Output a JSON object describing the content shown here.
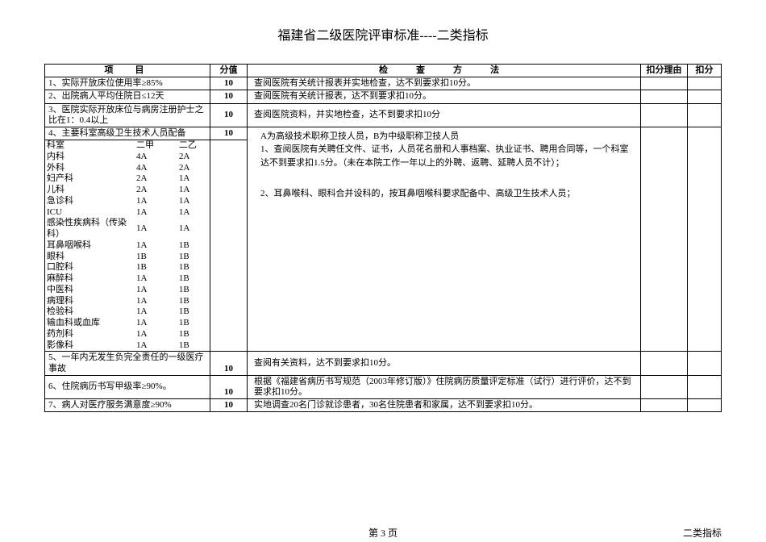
{
  "title": "福建省二级医院评审标准----二类指标",
  "headers": {
    "item": "项　目",
    "score": "分值",
    "method": "检　查　方　法",
    "reason": "扣分理由",
    "deduct": "扣分"
  },
  "rows": [
    {
      "item": "1、实际开放床位使用率≥85%",
      "score": "10",
      "method": "查阅医院有关统计报表并实地检查，达不到要求扣10分。"
    },
    {
      "item": "2、出院病人平均住院日≤12天",
      "score": "10",
      "method": "查阅医院有关统计报表，达不到要求扣10分。"
    },
    {
      "item": "3、医院实际开放床位与病房注册护士之比在1：0.4以上",
      "score": "10",
      "method": "查阅医院资料，并实地检查，达不到要求扣10分"
    }
  ],
  "deptHeader": {
    "item": "4、主要科室高级卫生技术人员配备",
    "score": "10"
  },
  "deptColumns": {
    "c1": "科室",
    "c2": "二甲",
    "c3": "二乙"
  },
  "depts": [
    {
      "name": "内科",
      "a": "4A",
      "b": "2A"
    },
    {
      "name": "外科",
      "a": "4A",
      "b": "2A"
    },
    {
      "name": "妇产科",
      "a": "2A",
      "b": "1A"
    },
    {
      "name": "儿科",
      "a": "2A",
      "b": "1A"
    },
    {
      "name": "急诊科",
      "a": "1A",
      "b": "1A"
    },
    {
      "name": "ICU",
      "a": "1A",
      "b": "1A"
    },
    {
      "name": "感染性疾病科（传染科）",
      "a": "1A",
      "b": "1A"
    },
    {
      "name": "耳鼻咽喉科",
      "a": "1A",
      "b": "1B"
    },
    {
      "name": "眼科",
      "a": "1B",
      "b": "1B"
    },
    {
      "name": "口腔科",
      "a": "1B",
      "b": "1B"
    },
    {
      "name": "麻醉科",
      "a": "1A",
      "b": "1B"
    },
    {
      "name": "中医科",
      "a": "1A",
      "b": "1B"
    },
    {
      "name": "病理科",
      "a": "1A",
      "b": "1B"
    },
    {
      "name": "检验科",
      "a": "1A",
      "b": "1B"
    },
    {
      "name": "输血科或血库",
      "a": "1A",
      "b": "1B"
    },
    {
      "name": "药剂科",
      "a": "1A",
      "b": "1B"
    },
    {
      "name": "影像科",
      "a": "1A",
      "b": "1B"
    }
  ],
  "deptMethod": {
    "line1": "A为高级技术职称卫技人员，B为中级职称卫技人员",
    "line2": "1、查阅医院有关聘任文件、证书，人员花名册和人事档案、执业证书、聘用合同等，一个科室达不到要求扣1.5分。（未在本院工作一年以上的外聘、返聘、延聘人员不计）；",
    "line3": "2、耳鼻喉科、眼科合并设科的，按耳鼻咽喉科要求配备中、高级卫生技术人员；"
  },
  "rows2": [
    {
      "item": "5、一年内无发生负完全责任的一级医疗事故",
      "score": "10",
      "method": "查阅有关资料，达不到要求扣10分。"
    },
    {
      "item": "6、住院病历书写甲级率≥90%。",
      "score": "10",
      "method": "根据《福建省病历书写规范（2003年修订版）》住院病历质量评定标准（试行）进行评价，达不到要求扣10分。"
    },
    {
      "item": "7、病人对医疗服务满意度≥90%",
      "score": "10",
      "method": "实地调查20名门诊就诊患者，30名住院患者和家属，达不到要求扣10分。"
    }
  ],
  "footer": {
    "pageNum": "第 3 页",
    "right": "二类指标"
  }
}
